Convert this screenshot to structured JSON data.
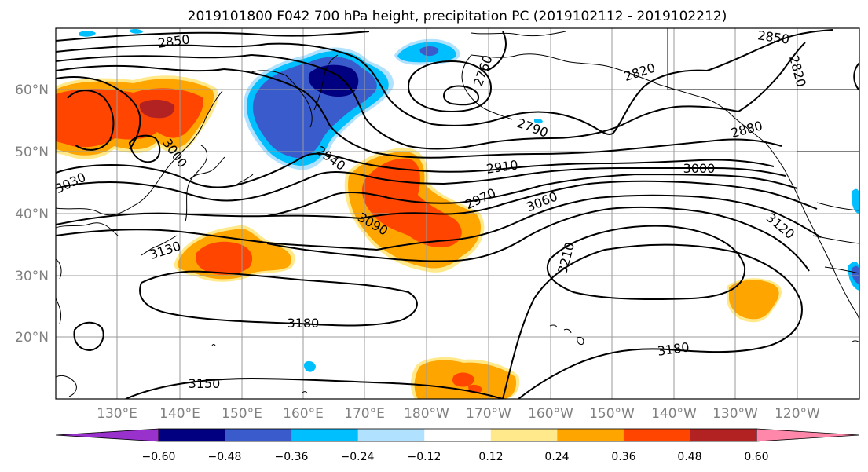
{
  "title": "2019101800 F042 700 hPa height, precipitation PC (2019102112 - 2019102212)",
  "lat_labels": [
    "60°N",
    "50°N",
    "40°N",
    "30°N",
    "20°N"
  ],
  "lon_labels": [
    "130°E",
    "140°E",
    "150°E",
    "160°E",
    "170°E",
    "180°W",
    "170°W",
    "160°W",
    "150°W",
    "140°W",
    "130°W",
    "120°W"
  ],
  "contour_labels": [
    "2850",
    "2850",
    "2820",
    "2820",
    "2760",
    "2790",
    "2880",
    "2940",
    "2910",
    "3000",
    "2970",
    "3060",
    "3090",
    "3120",
    "3000",
    "3030",
    "3130",
    "3210",
    "3180",
    "3180",
    "3150"
  ],
  "colorbar": {
    "colors": [
      "#9932cc",
      "#000080",
      "#3a5bcc",
      "#00bfff",
      "#b0e2ff",
      "#ffffff",
      "#ffe98a",
      "#ffa500",
      "#ff4500",
      "#b22222",
      "#ff88aa"
    ],
    "tick_labels": [
      "−0.60",
      "−0.48",
      "−0.36",
      "−0.24",
      "−0.12",
      "0.12",
      "0.24",
      "0.36",
      "0.48",
      "0.60"
    ]
  }
}
